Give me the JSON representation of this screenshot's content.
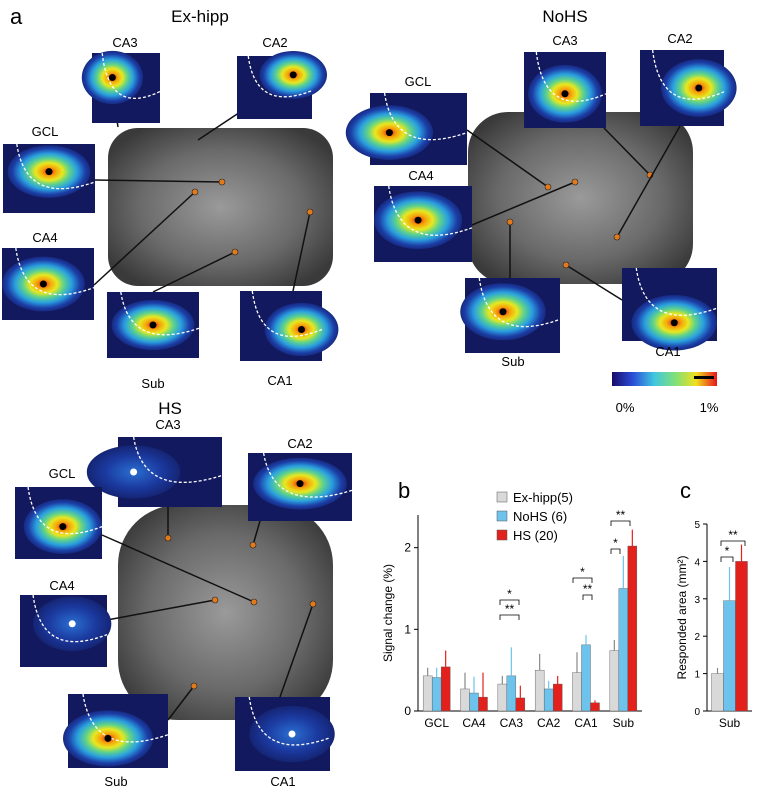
{
  "figure": {
    "panel_label": "a",
    "colorbar": {
      "min_label": "0%",
      "max_label": "1%"
    },
    "groups": [
      {
        "title": "Ex-hipp",
        "regions": [
          "CA3",
          "CA2",
          "GCL",
          "CA4",
          "Sub",
          "CA1"
        ]
      },
      {
        "title": "NoHS",
        "regions": [
          "GCL",
          "CA3",
          "CA2",
          "CA4",
          "Sub",
          "CA1"
        ]
      },
      {
        "title": "HS",
        "regions": [
          "CA3",
          "CA2",
          "GCL",
          "CA4",
          "Sub",
          "CA1"
        ]
      }
    ]
  },
  "chart_data": [
    {
      "type": "bar",
      "panel_label": "b",
      "ylabel": "Signal change (%)",
      "categories": [
        "GCL",
        "CA4",
        "CA3",
        "CA2",
        "CA1",
        "Sub"
      ],
      "series": [
        {
          "name": "Ex-hipp(5)",
          "color": "#d9d9d9",
          "values": [
            0.43,
            0.27,
            0.33,
            0.5,
            0.47,
            0.74
          ],
          "errors": [
            0.1,
            0.2,
            0.1,
            0.2,
            0.25,
            0.13
          ]
        },
        {
          "name": "NoHS (6)",
          "color": "#6ec3ec",
          "values": [
            0.41,
            0.22,
            0.43,
            0.27,
            0.81,
            1.5
          ],
          "errors": [
            0.12,
            0.2,
            0.35,
            0.1,
            0.12,
            0.4
          ]
        },
        {
          "name": "HS (20)",
          "color": "#e3211c",
          "values": [
            0.54,
            0.17,
            0.16,
            0.33,
            0.1,
            2.02
          ],
          "errors": [
            0.2,
            0.3,
            0.15,
            0.1,
            0.03,
            0.2
          ]
        }
      ],
      "ylim": [
        0,
        2.4
      ],
      "yticks": [
        0,
        1,
        2
      ],
      "annotations": [
        "*",
        "**",
        "*",
        "**",
        "**",
        "*"
      ]
    },
    {
      "type": "bar",
      "panel_label": "c",
      "ylabel": "Responded area (mm²)",
      "categories": [
        "Sub"
      ],
      "series": [
        {
          "name": "Ex-hipp(5)",
          "color": "#d9d9d9",
          "values": [
            1.0
          ],
          "errors": [
            0.15
          ]
        },
        {
          "name": "NoHS (6)",
          "color": "#6ec3ec",
          "values": [
            2.95
          ],
          "errors": [
            0.9
          ]
        },
        {
          "name": "HS (20)",
          "color": "#e3211c",
          "values": [
            4.0
          ],
          "errors": [
            0.45
          ]
        }
      ],
      "ylim": [
        0,
        5
      ],
      "yticks": [
        0,
        1,
        2,
        3,
        4,
        5
      ],
      "annotations": [
        "**",
        "*"
      ]
    }
  ]
}
